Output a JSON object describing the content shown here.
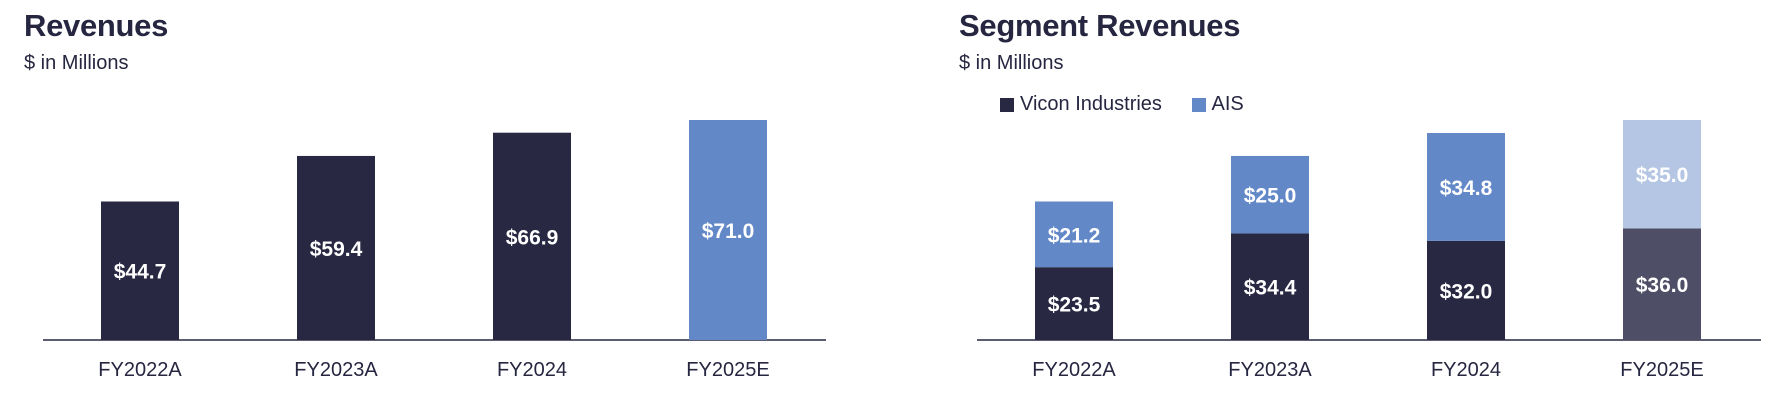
{
  "colors": {
    "dark": "#282843",
    "blue": "#6388c8",
    "light_blue": "#b4c6e4",
    "dark_grey": "#4e4e66",
    "axis": "#262641",
    "label_white": "#ffffff"
  },
  "left": {
    "title": "Revenues",
    "subtitle": "$ in Millions"
  },
  "right": {
    "title": "Segment Revenues",
    "subtitle": "$ in Millions",
    "legend": [
      {
        "name": "Vicon Industries",
        "color": "#282843"
      },
      {
        "name": "AIS",
        "color": "#6388c8"
      }
    ]
  },
  "chart_data": [
    {
      "type": "bar",
      "title": "Revenues",
      "subtitle": "$ in Millions",
      "categories": [
        "FY2022A",
        "FY2023A",
        "FY2024",
        "FY2025E"
      ],
      "values": [
        44.7,
        59.4,
        66.9,
        71.0
      ],
      "labels": [
        "$44.7",
        "$59.4",
        "$66.9",
        "$71.0"
      ],
      "bar_colors": [
        "#282843",
        "#282843",
        "#282843",
        "#6388c8"
      ],
      "ylim": [
        0,
        71.0
      ],
      "grid": false
    },
    {
      "type": "bar",
      "stacked": true,
      "title": "Segment Revenues",
      "subtitle": "$ in Millions",
      "categories": [
        "FY2022A",
        "FY2023A",
        "FY2024",
        "FY2025E"
      ],
      "series": [
        {
          "name": "Vicon Industries",
          "values": [
            23.5,
            34.4,
            32.0,
            36.0
          ],
          "labels": [
            "$23.5",
            "$34.4",
            "$32.0",
            "$36.0"
          ],
          "colors": [
            "#282843",
            "#282843",
            "#282843",
            "#4e4e66"
          ]
        },
        {
          "name": "AIS",
          "values": [
            21.2,
            25.0,
            34.8,
            35.0
          ],
          "labels": [
            "$21.2",
            "$25.0",
            "$34.8",
            "$35.0"
          ],
          "colors": [
            "#6388c8",
            "#6388c8",
            "#6388c8",
            "#b4c6e4"
          ]
        }
      ],
      "ylim": [
        0,
        71.0
      ],
      "legend": "top-left",
      "grid": false
    }
  ]
}
